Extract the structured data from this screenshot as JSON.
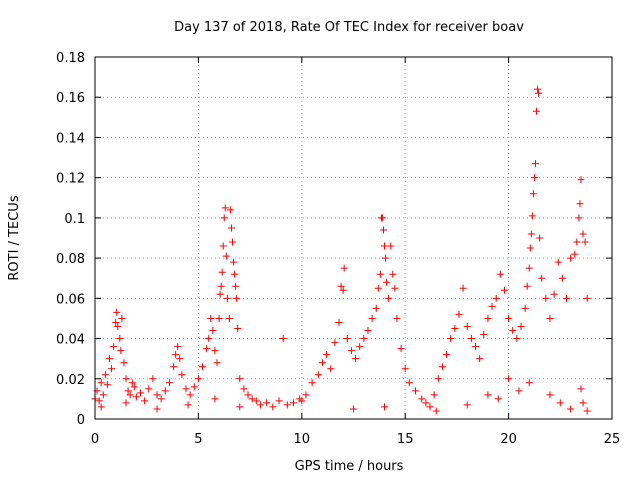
{
  "chart_data": {
    "type": "scatter",
    "title": "Day 137 of 2018, Rate Of TEC Index for receiver boav",
    "xlabel": "GPS time / hours",
    "ylabel": "ROTI / TECUs",
    "xlim": [
      0,
      25
    ],
    "ylim": [
      0,
      0.18
    ],
    "xticks": [
      0,
      5,
      10,
      15,
      20,
      25
    ],
    "yticks": [
      0,
      0.02,
      0.04,
      0.06,
      0.08,
      0.1,
      0.12,
      0.14,
      0.16,
      0.18
    ],
    "grid": true,
    "marker": "+",
    "color": "#ff0000",
    "series": [
      {
        "name": "ROTI",
        "points": [
          [
            0.0,
            0.01
          ],
          [
            0.1,
            0.014
          ],
          [
            0.2,
            0.009
          ],
          [
            0.3,
            0.018
          ],
          [
            0.4,
            0.012
          ],
          [
            0.5,
            0.022
          ],
          [
            0.6,
            0.017
          ],
          [
            0.7,
            0.03
          ],
          [
            0.8,
            0.025
          ],
          [
            0.9,
            0.036
          ],
          [
            1.0,
            0.048
          ],
          [
            1.05,
            0.053
          ],
          [
            1.1,
            0.046
          ],
          [
            1.2,
            0.04
          ],
          [
            1.25,
            0.034
          ],
          [
            1.3,
            0.05
          ],
          [
            1.4,
            0.028
          ],
          [
            1.5,
            0.02
          ],
          [
            1.6,
            0.014
          ],
          [
            1.7,
            0.012
          ],
          [
            1.8,
            0.018
          ],
          [
            1.9,
            0.016
          ],
          [
            2.0,
            0.011
          ],
          [
            2.2,
            0.013
          ],
          [
            2.4,
            0.009
          ],
          [
            2.6,
            0.015
          ],
          [
            2.8,
            0.02
          ],
          [
            3.0,
            0.012
          ],
          [
            3.2,
            0.01
          ],
          [
            3.4,
            0.014
          ],
          [
            3.6,
            0.018
          ],
          [
            3.8,
            0.026
          ],
          [
            3.9,
            0.032
          ],
          [
            4.0,
            0.036
          ],
          [
            4.1,
            0.03
          ],
          [
            4.2,
            0.022
          ],
          [
            4.4,
            0.015
          ],
          [
            4.6,
            0.012
          ],
          [
            4.8,
            0.016
          ],
          [
            5.0,
            0.02
          ],
          [
            5.2,
            0.026
          ],
          [
            5.4,
            0.035
          ],
          [
            5.5,
            0.04
          ],
          [
            5.6,
            0.05
          ],
          [
            5.7,
            0.044
          ],
          [
            5.8,
            0.034
          ],
          [
            5.9,
            0.028
          ],
          [
            6.0,
            0.05
          ],
          [
            6.05,
            0.062
          ],
          [
            6.1,
            0.066
          ],
          [
            6.15,
            0.073
          ],
          [
            6.2,
            0.086
          ],
          [
            6.25,
            0.1
          ],
          [
            6.3,
            0.105
          ],
          [
            6.35,
            0.081
          ],
          [
            6.4,
            0.06
          ],
          [
            6.5,
            0.05
          ],
          [
            6.55,
            0.104
          ],
          [
            6.6,
            0.095
          ],
          [
            6.65,
            0.088
          ],
          [
            6.7,
            0.078
          ],
          [
            6.75,
            0.072
          ],
          [
            6.8,
            0.066
          ],
          [
            6.85,
            0.06
          ],
          [
            6.9,
            0.045
          ],
          [
            7.0,
            0.02
          ],
          [
            7.2,
            0.015
          ],
          [
            7.4,
            0.012
          ],
          [
            7.6,
            0.01
          ],
          [
            7.8,
            0.009
          ],
          [
            8.0,
            0.007
          ],
          [
            8.3,
            0.008
          ],
          [
            8.6,
            0.006
          ],
          [
            8.9,
            0.009
          ],
          [
            9.1,
            0.04
          ],
          [
            9.3,
            0.007
          ],
          [
            9.6,
            0.008
          ],
          [
            9.9,
            0.01
          ],
          [
            10.2,
            0.012
          ],
          [
            10.5,
            0.018
          ],
          [
            10.8,
            0.022
          ],
          [
            11.0,
            0.028
          ],
          [
            11.2,
            0.032
          ],
          [
            11.4,
            0.025
          ],
          [
            11.6,
            0.038
          ],
          [
            11.8,
            0.048
          ],
          [
            11.9,
            0.066
          ],
          [
            12.0,
            0.064
          ],
          [
            12.05,
            0.075
          ],
          [
            12.2,
            0.04
          ],
          [
            12.4,
            0.034
          ],
          [
            12.6,
            0.03
          ],
          [
            12.8,
            0.036
          ],
          [
            13.0,
            0.04
          ],
          [
            13.2,
            0.044
          ],
          [
            13.4,
            0.05
          ],
          [
            13.6,
            0.055
          ],
          [
            13.7,
            0.065
          ],
          [
            13.8,
            0.072
          ],
          [
            13.85,
            0.1
          ],
          [
            13.9,
            0.1
          ],
          [
            13.95,
            0.094
          ],
          [
            14.0,
            0.086
          ],
          [
            14.05,
            0.08
          ],
          [
            14.1,
            0.068
          ],
          [
            14.2,
            0.06
          ],
          [
            14.3,
            0.086
          ],
          [
            14.4,
            0.072
          ],
          [
            14.5,
            0.065
          ],
          [
            14.6,
            0.05
          ],
          [
            14.8,
            0.035
          ],
          [
            15.0,
            0.025
          ],
          [
            15.2,
            0.018
          ],
          [
            15.5,
            0.014
          ],
          [
            15.8,
            0.01
          ],
          [
            16.0,
            0.008
          ],
          [
            16.2,
            0.006
          ],
          [
            16.4,
            0.012
          ],
          [
            16.6,
            0.02
          ],
          [
            16.8,
            0.026
          ],
          [
            17.0,
            0.032
          ],
          [
            17.2,
            0.04
          ],
          [
            17.4,
            0.045
          ],
          [
            17.6,
            0.052
          ],
          [
            17.8,
            0.065
          ],
          [
            18.0,
            0.046
          ],
          [
            18.2,
            0.04
          ],
          [
            18.4,
            0.036
          ],
          [
            18.6,
            0.03
          ],
          [
            18.8,
            0.042
          ],
          [
            19.0,
            0.05
          ],
          [
            19.2,
            0.056
          ],
          [
            19.4,
            0.06
          ],
          [
            19.6,
            0.072
          ],
          [
            19.8,
            0.064
          ],
          [
            20.0,
            0.05
          ],
          [
            20.2,
            0.044
          ],
          [
            20.4,
            0.04
          ],
          [
            20.6,
            0.046
          ],
          [
            20.8,
            0.055
          ],
          [
            20.9,
            0.066
          ],
          [
            21.0,
            0.075
          ],
          [
            21.05,
            0.085
          ],
          [
            21.1,
            0.092
          ],
          [
            21.15,
            0.101
          ],
          [
            21.2,
            0.112
          ],
          [
            21.25,
            0.12
          ],
          [
            21.3,
            0.127
          ],
          [
            21.35,
            0.153
          ],
          [
            21.4,
            0.164
          ],
          [
            21.45,
            0.162
          ],
          [
            21.5,
            0.09
          ],
          [
            21.6,
            0.07
          ],
          [
            21.8,
            0.06
          ],
          [
            22.0,
            0.05
          ],
          [
            22.2,
            0.062
          ],
          [
            22.4,
            0.078
          ],
          [
            22.6,
            0.07
          ],
          [
            22.8,
            0.06
          ],
          [
            23.0,
            0.08
          ],
          [
            23.2,
            0.082
          ],
          [
            23.3,
            0.088
          ],
          [
            23.4,
            0.1
          ],
          [
            23.45,
            0.107
          ],
          [
            23.5,
            0.119
          ],
          [
            23.6,
            0.092
          ],
          [
            23.7,
            0.088
          ],
          [
            23.8,
            0.06
          ],
          [
            23.5,
            0.015
          ],
          [
            23.6,
            0.008
          ],
          [
            0.3,
            0.006
          ],
          [
            1.5,
            0.008
          ],
          [
            3.0,
            0.005
          ],
          [
            4.5,
            0.007
          ],
          [
            5.8,
            0.01
          ],
          [
            7.0,
            0.006
          ],
          [
            10.0,
            0.009
          ],
          [
            12.5,
            0.005
          ],
          [
            14.0,
            0.006
          ],
          [
            16.5,
            0.004
          ],
          [
            18.0,
            0.007
          ],
          [
            19.5,
            0.01
          ],
          [
            20.5,
            0.014
          ],
          [
            21.0,
            0.018
          ],
          [
            22.0,
            0.012
          ],
          [
            22.5,
            0.008
          ],
          [
            23.0,
            0.005
          ],
          [
            23.8,
            0.004
          ],
          [
            19.0,
            0.012
          ],
          [
            20.0,
            0.02
          ]
        ]
      }
    ]
  }
}
